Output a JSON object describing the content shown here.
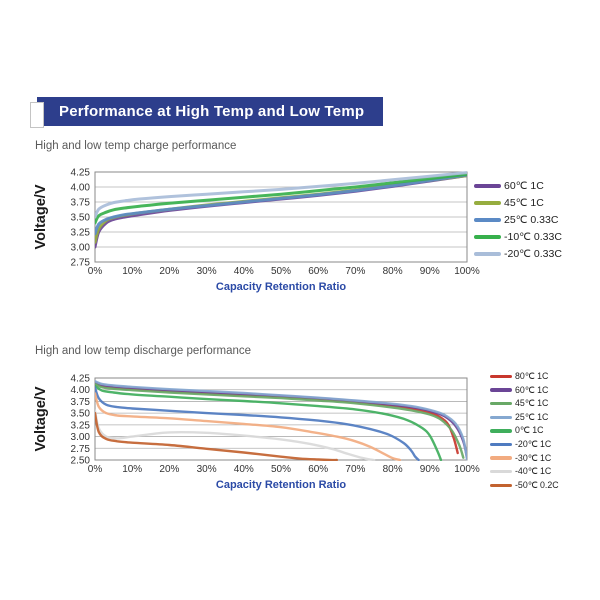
{
  "banner": {
    "title": "Performance at High Temp and Low Temp",
    "bg_color": "#2d3e8c"
  },
  "colors": {
    "axis_label_blue": "#2b4aa6",
    "grid": "#b0b0b0",
    "plot_border": "#8a8a8a",
    "tick_text": "#333333",
    "chart_title_gray": "#5a5a5a"
  },
  "chart_data": [
    {
      "type": "line",
      "title": "High and low temp charge performance",
      "xlabel": "Capacity Retention Ratio",
      "ylabel": "Voltage/V",
      "ylim": [
        2.75,
        4.25
      ],
      "yticks": [
        4.25,
        4.0,
        3.75,
        3.5,
        3.25,
        3.0,
        2.75
      ],
      "xlim": [
        0,
        100
      ],
      "xtick_labels": [
        "0%",
        "10%",
        "20%",
        "30%",
        "40%",
        "50%",
        "60%",
        "70%",
        "80%",
        "90%",
        "100%"
      ],
      "grid": "horizontal",
      "legend_position": "right",
      "series": [
        {
          "name": "60℃ 1C",
          "color": "#6b4596",
          "x": [
            0,
            1,
            3,
            5,
            8,
            12,
            20,
            30,
            40,
            50,
            60,
            70,
            80,
            90,
            100
          ],
          "y": [
            3.0,
            3.25,
            3.4,
            3.46,
            3.5,
            3.54,
            3.61,
            3.68,
            3.74,
            3.8,
            3.86,
            3.93,
            4.01,
            4.1,
            4.19
          ]
        },
        {
          "name": "45℃ 1C",
          "color": "#96ad3f",
          "x": [
            0,
            1,
            3,
            5,
            8,
            12,
            20,
            30,
            40,
            50,
            60,
            70,
            80,
            90,
            100
          ],
          "y": [
            3.08,
            3.3,
            3.44,
            3.49,
            3.53,
            3.57,
            3.63,
            3.7,
            3.76,
            3.82,
            3.88,
            3.95,
            4.03,
            4.11,
            4.19
          ]
        },
        {
          "name": "25℃ 0.33C",
          "color": "#5b8ac5",
          "x": [
            0,
            1,
            3,
            5,
            8,
            12,
            20,
            30,
            40,
            50,
            60,
            70,
            80,
            90,
            100
          ],
          "y": [
            3.22,
            3.38,
            3.46,
            3.5,
            3.54,
            3.57,
            3.63,
            3.69,
            3.75,
            3.81,
            3.87,
            3.94,
            4.02,
            4.11,
            4.2
          ]
        },
        {
          "name": "-10℃ 0.33C",
          "color": "#37b04c",
          "x": [
            0,
            1,
            3,
            5,
            8,
            12,
            20,
            30,
            40,
            50,
            60,
            70,
            80,
            90,
            100
          ],
          "y": [
            3.4,
            3.52,
            3.58,
            3.62,
            3.65,
            3.68,
            3.73,
            3.78,
            3.83,
            3.88,
            3.94,
            4.0,
            4.07,
            4.14,
            4.21
          ]
        },
        {
          "name": "-20℃ 0.33C",
          "color": "#a9bdd9",
          "x": [
            0,
            1,
            3,
            5,
            8,
            12,
            20,
            30,
            40,
            50,
            60,
            70,
            80,
            90,
            100
          ],
          "y": [
            3.5,
            3.63,
            3.7,
            3.74,
            3.77,
            3.8,
            3.84,
            3.88,
            3.92,
            3.96,
            4.01,
            4.06,
            4.12,
            4.18,
            4.24
          ]
        }
      ]
    },
    {
      "type": "line",
      "title": "High and low temp discharge performance",
      "xlabel": "Capacity Retention Ratio",
      "ylabel": "Voltage/V",
      "ylim": [
        2.5,
        4.25
      ],
      "yticks": [
        4.25,
        4.0,
        3.75,
        3.5,
        3.25,
        3.0,
        2.75,
        2.5
      ],
      "xlim": [
        0,
        100
      ],
      "xtick_labels": [
        "0%",
        "10%",
        "20%",
        "30%",
        "40%",
        "50%",
        "60%",
        "70%",
        "80%",
        "90%",
        "100%"
      ],
      "grid": "horizontal",
      "legend_position": "right",
      "series": [
        {
          "name": "80℃ 1C",
          "color": "#c8372d",
          "x": [
            0,
            2,
            5,
            10,
            20,
            30,
            40,
            50,
            60,
            70,
            80,
            85,
            90,
            93,
            95,
            96.5,
            97.5
          ],
          "y": [
            4.15,
            4.08,
            4.05,
            4.02,
            3.97,
            3.93,
            3.89,
            3.85,
            3.8,
            3.74,
            3.66,
            3.6,
            3.51,
            3.4,
            3.25,
            2.95,
            2.65
          ]
        },
        {
          "name": "60℃ 1C",
          "color": "#6b4596",
          "x": [
            0,
            2,
            5,
            10,
            20,
            30,
            40,
            50,
            60,
            70,
            80,
            85,
            90,
            94,
            97,
            99,
            100
          ],
          "y": [
            4.16,
            4.1,
            4.07,
            4.04,
            3.99,
            3.95,
            3.91,
            3.87,
            3.82,
            3.76,
            3.68,
            3.63,
            3.55,
            3.43,
            3.22,
            2.9,
            2.55
          ]
        },
        {
          "name": "45℃ 1C",
          "color": "#68a866",
          "x": [
            0,
            2,
            5,
            10,
            20,
            30,
            40,
            50,
            60,
            70,
            80,
            85,
            90,
            93,
            96,
            98,
            99
          ],
          "y": [
            4.12,
            4.05,
            4.02,
            3.99,
            3.94,
            3.9,
            3.86,
            3.82,
            3.77,
            3.71,
            3.62,
            3.56,
            3.47,
            3.36,
            3.12,
            2.8,
            2.55
          ]
        },
        {
          "name": "25℃ 1C",
          "color": "#85a8d0",
          "x": [
            0,
            2,
            5,
            10,
            20,
            30,
            40,
            50,
            60,
            70,
            80,
            85,
            90,
            94,
            97,
            99,
            100
          ],
          "y": [
            4.18,
            4.12,
            4.09,
            4.06,
            4.01,
            3.97,
            3.93,
            3.88,
            3.83,
            3.77,
            3.7,
            3.65,
            3.57,
            3.46,
            3.27,
            2.95,
            2.52
          ]
        },
        {
          "name": "0℃ 1C",
          "color": "#3fae5c",
          "x": [
            0,
            2,
            5,
            10,
            20,
            30,
            40,
            50,
            60,
            70,
            78,
            84,
            88,
            90,
            92,
            93
          ],
          "y": [
            4.08,
            3.98,
            3.94,
            3.9,
            3.85,
            3.8,
            3.76,
            3.71,
            3.65,
            3.58,
            3.48,
            3.35,
            3.18,
            3.02,
            2.7,
            2.5
          ]
        },
        {
          "name": "-20℃ 1C",
          "color": "#4f7bc0",
          "x": [
            0,
            1,
            3,
            6,
            10,
            20,
            30,
            40,
            50,
            60,
            68,
            74,
            79,
            83,
            85,
            86,
            87
          ],
          "y": [
            4.05,
            3.82,
            3.68,
            3.63,
            3.6,
            3.55,
            3.5,
            3.46,
            3.41,
            3.34,
            3.26,
            3.16,
            3.04,
            2.86,
            2.7,
            2.58,
            2.5
          ]
        },
        {
          "name": "-30℃ 1C",
          "color": "#f2ab80",
          "x": [
            0,
            1,
            3,
            6,
            10,
            20,
            30,
            40,
            50,
            58,
            65,
            70,
            74,
            78,
            80,
            82
          ],
          "y": [
            3.92,
            3.64,
            3.5,
            3.45,
            3.43,
            3.39,
            3.33,
            3.27,
            3.2,
            3.1,
            3.0,
            2.9,
            2.78,
            2.62,
            2.54,
            2.5
          ]
        },
        {
          "name": "-40℃ 1C",
          "color": "#d9d9d9",
          "x": [
            0,
            1,
            3,
            6,
            10,
            15,
            20,
            30,
            40,
            50,
            58,
            64,
            68,
            72,
            74,
            75
          ],
          "y": [
            3.55,
            3.18,
            3.0,
            2.96,
            3.0,
            3.05,
            3.09,
            3.08,
            3.02,
            2.94,
            2.84,
            2.73,
            2.63,
            2.54,
            2.51,
            2.5
          ]
        },
        {
          "name": "-50℃ 0.2C",
          "color": "#c2622f",
          "x": [
            0,
            1,
            3,
            6,
            10,
            20,
            30,
            40,
            50,
            55,
            60,
            63,
            65
          ],
          "y": [
            3.5,
            3.1,
            2.95,
            2.9,
            2.87,
            2.82,
            2.74,
            2.66,
            2.57,
            2.53,
            2.51,
            2.5,
            2.5
          ]
        }
      ]
    }
  ]
}
